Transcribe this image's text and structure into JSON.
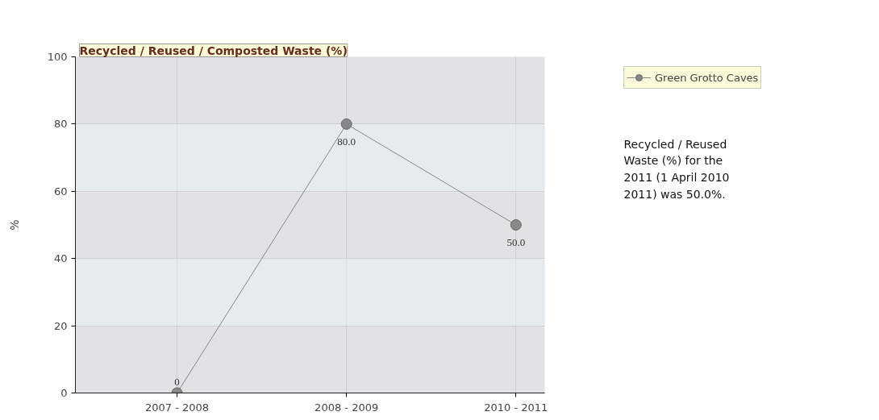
{
  "chart_data": {
    "type": "line",
    "title": "Recycled / Reused / Composted Waste (%)",
    "ylabel": "%",
    "categories": [
      "2007 - 2008",
      "2008 - 2009",
      "2010 - 2011"
    ],
    "series": [
      {
        "name": "Green Grotto Caves",
        "color": "#888888",
        "values": [
          0,
          80,
          50
        ],
        "value_labels": [
          "0",
          "80.0",
          "50.0"
        ]
      }
    ],
    "ylim": [
      0,
      100
    ],
    "yticks": [
      0,
      20,
      40,
      60,
      80,
      100
    ],
    "grid": true,
    "legend": "top right",
    "marker": "circle",
    "line_style": "solid",
    "annotations": [
      "Recycled / Reused\nWaste (%) for the\n2011 (1 April 2010\n2011) was 50.0%."
    ]
  }
}
